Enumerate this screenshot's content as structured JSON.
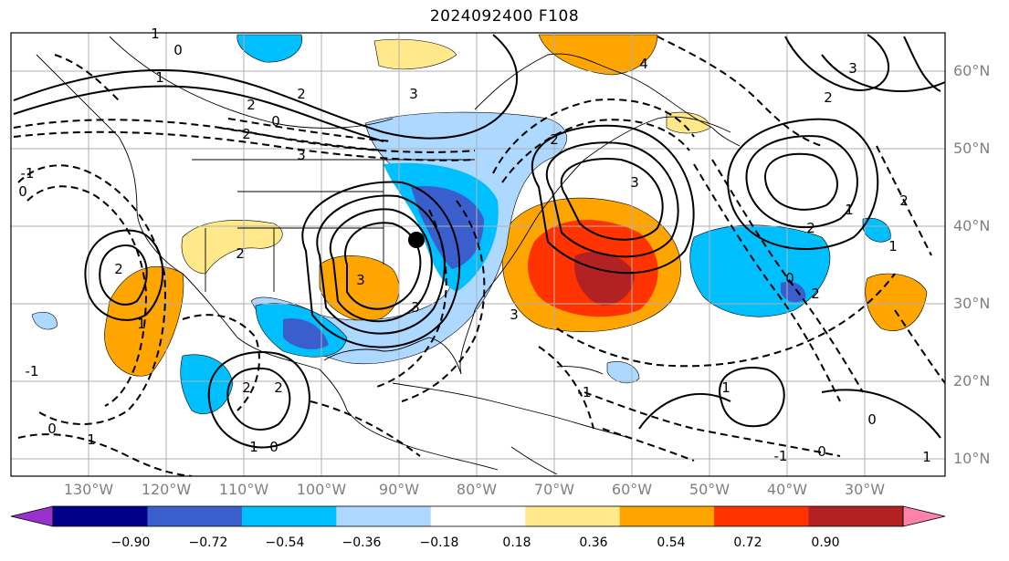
{
  "title": "2024092400 F108",
  "lat_labels": [
    "60°N",
    "50°N",
    "40°N",
    "30°N",
    "20°N",
    "10°N"
  ],
  "lon_labels": [
    "130°W",
    "120°W",
    "110°W",
    "100°W",
    "90°W",
    "80°W",
    "70°W",
    "60°W",
    "50°W",
    "40°W",
    "30°W"
  ],
  "colorbar": {
    "ticks": [
      "−0.90",
      "−0.72",
      "−0.54",
      "−0.36",
      "−0.18",
      "0.18",
      "0.36",
      "0.54",
      "0.72",
      "0.90"
    ],
    "colors": [
      "#9932cc",
      "#00008b",
      "#3a5fcd",
      "#00bfff",
      "#add8ff",
      "#ffffff",
      "#ffe98a",
      "#ffa500",
      "#ff3300",
      "#b22222",
      "#ff82ab"
    ]
  },
  "contour_labels": [
    "0",
    "1",
    "1",
    "2",
    "0",
    "2",
    "3",
    "2",
    "3",
    "3",
    "2",
    "3",
    "2",
    "3",
    "4",
    "2",
    "3",
    "2",
    "1",
    "2",
    "0",
    "1",
    "-1",
    "0",
    "-1",
    "1",
    "2",
    "1",
    "0",
    "2",
    "1",
    "0",
    "-1",
    "1",
    "2",
    "-1",
    "0",
    "3",
    "1",
    "2",
    "0"
  ]
}
